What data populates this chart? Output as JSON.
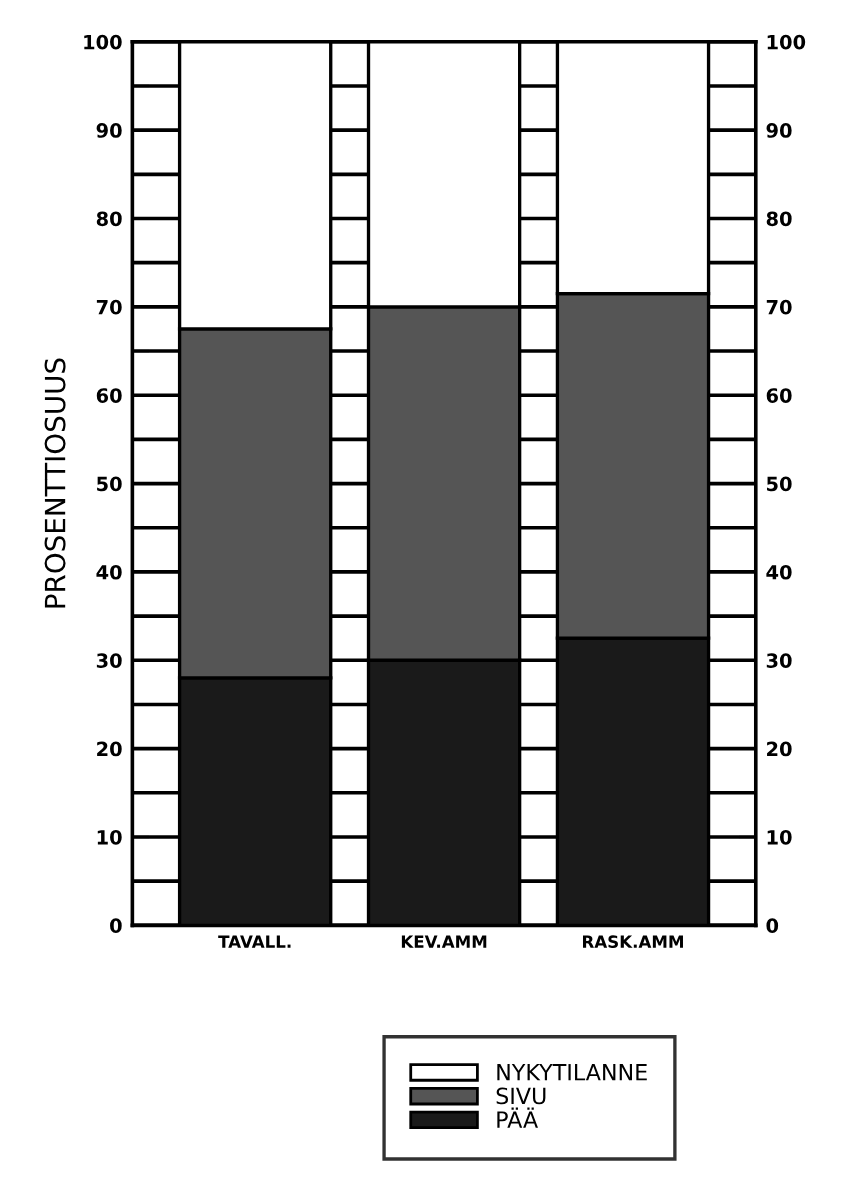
{
  "chart_data": {
    "type": "bar",
    "stacked": true,
    "ylabel": "PROSENTTIOSUUS",
    "categories": [
      "TAVALL.",
      "KEV.AMM",
      "RASK.AMM"
    ],
    "series": [
      {
        "name": "PÄÄ",
        "color": "#1a1a1a",
        "values": [
          28,
          30,
          32.5
        ]
      },
      {
        "name": "SIVU",
        "color": "#555555",
        "values": [
          39.5,
          40,
          39
        ]
      },
      {
        "name": "NYKYTILANNE",
        "color": "#ffffff",
        "values": [
          32.5,
          30,
          28.5
        ]
      }
    ],
    "ylim": [
      0,
      100
    ],
    "yticks": [
      0,
      {
        "value": 5,
        "label": null
      },
      10,
      {
        "value": 15,
        "label": null
      },
      20,
      {
        "value": 25,
        "label": null
      },
      30,
      {
        "value": 35,
        "label": null
      },
      40,
      {
        "value": 45,
        "label": null
      },
      50,
      {
        "value": 55,
        "label": null
      },
      60,
      {
        "value": 65,
        "label": null
      },
      70,
      {
        "value": 75,
        "label": null
      },
      80,
      {
        "value": 85,
        "label": null
      },
      90,
      {
        "value": 95,
        "label": null
      },
      100
    ],
    "y2lim": [
      0,
      100
    ],
    "y2ticks": [
      0,
      {
        "value": 5,
        "label": null
      },
      10,
      {
        "value": 15,
        "label": null
      },
      20,
      {
        "value": 25,
        "label": null
      },
      30,
      {
        "value": 35,
        "label": null
      },
      40,
      {
        "value": 45,
        "label": null
      },
      50,
      {
        "value": 55,
        "label": null
      },
      60,
      {
        "value": 65,
        "label": null
      },
      70,
      {
        "value": 75,
        "label": null
      },
      80,
      {
        "value": 85,
        "label": null
      },
      90,
      {
        "value": 95,
        "label": null
      },
      100
    ],
    "grid": "y",
    "legend": "bottom"
  }
}
